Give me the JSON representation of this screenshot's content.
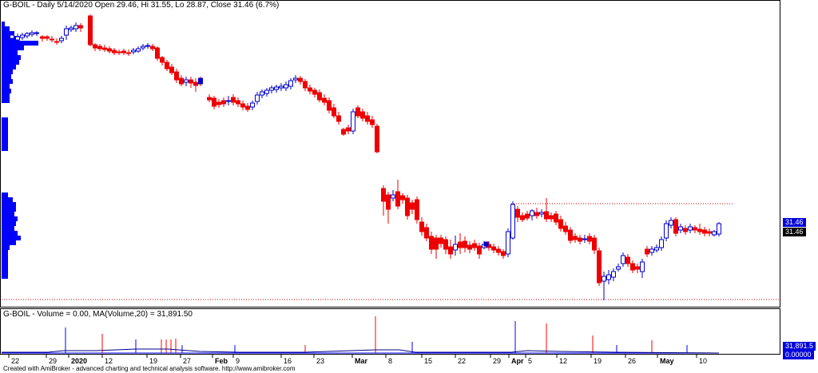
{
  "header": {
    "price_title": "G-BOIL - Daily 5/14/2020 Open 29.46, Hi 31.55, Lo 28.87, Close 31.46 (6.7%)",
    "volume_title": "G-BOIL - Volume = 0.00, MA(Volume,20) = 31,891.50"
  },
  "footer": {
    "credit": "Created with AmiBroker - advanced charting and technical analysis software. http://www.amibroker.com"
  },
  "price_tags": {
    "last_close": "31.46",
    "close_label": "31.46"
  },
  "volume_tags": {
    "ma_value": "31,891.5",
    "last_volume": "0.00000"
  },
  "colors": {
    "up": "#ffffff",
    "up_outline": "#0000cc",
    "down": "#ee0000",
    "volume_profile": "#0000ff",
    "ma_line": "#00008b",
    "grid_border": "#000000"
  },
  "chart_data": {
    "type": "candlestick",
    "title": "G-BOIL - Daily 5/14/2020 Open 29.46, Hi 31.55, Lo 28.87, Close 31.46 (6.7%)",
    "x_tick_labels": [
      "22",
      "29",
      "2020",
      "12",
      "19",
      "27",
      "Feb",
      "9",
      "16",
      "23",
      "Mar",
      "8",
      "15",
      "22",
      "29",
      "Apr",
      "5",
      "12",
      "19",
      "26",
      "May",
      "10"
    ],
    "last_close": 31.46,
    "series": [
      {
        "name": "Volume",
        "last_value": 0.0
      },
      {
        "name": "MA(Volume,20)",
        "last_value": 31891.5
      }
    ]
  }
}
